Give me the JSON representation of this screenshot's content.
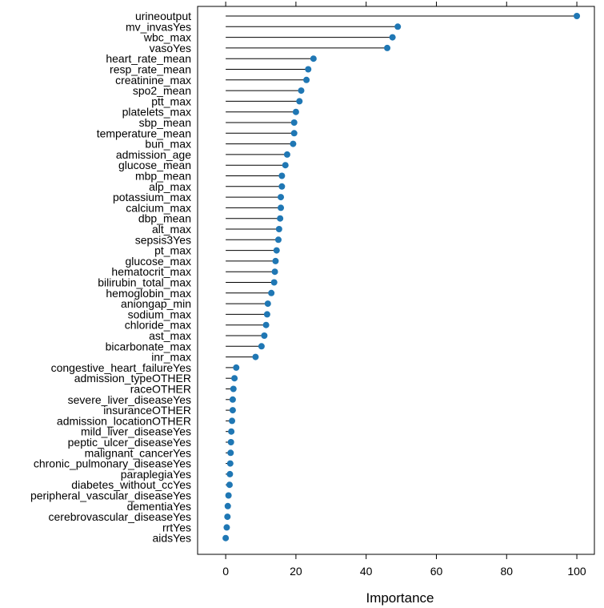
{
  "chart_data": {
    "type": "lollipop",
    "orientation": "horizontal",
    "xlabel": "Importance",
    "ylabel": "",
    "title": "",
    "xlim": [
      -8,
      105
    ],
    "x_ticks": [
      0,
      20,
      40,
      60,
      80,
      100
    ],
    "grid": false,
    "legend": "none",
    "point_color": "#1f77b4",
    "line_color": "#000000",
    "categories": [
      "urineoutput",
      "mv_invasYes",
      "wbc_max",
      "vasoYes",
      "heart_rate_mean",
      "resp_rate_mean",
      "creatinine_max",
      "spo2_mean",
      "ptt_max",
      "platelets_max",
      "sbp_mean",
      "temperature_mean",
      "bun_max",
      "admission_age",
      "glucose_mean",
      "mbp_mean",
      "alp_max",
      "potassium_max",
      "calcium_max",
      "dbp_mean",
      "alt_max",
      "sepsis3Yes",
      "pt_max",
      "glucose_max",
      "hematocrit_max",
      "bilirubin_total_max",
      "hemoglobin_max",
      "aniongap_min",
      "sodium_max",
      "chloride_max",
      "ast_max",
      "bicarbonate_max",
      "inr_max",
      "congestive_heart_failureYes",
      "admission_typeOTHER",
      "raceOTHER",
      "severe_liver_diseaseYes",
      "insuranceOTHER",
      "admission_locationOTHER",
      "mild_liver_diseaseYes",
      "peptic_ulcer_diseaseYes",
      "malignant_cancerYes",
      "chronic_pulmonary_diseaseYes",
      "paraplegiaYes",
      "diabetes_without_ccYes",
      "peripheral_vascular_diseaseYes",
      "dementiaYes",
      "cerebrovascular_diseaseYes",
      "rrtYes",
      "aidsYes"
    ],
    "values": [
      100,
      49,
      47.5,
      46,
      25,
      23.5,
      23,
      21.5,
      21,
      20,
      19.5,
      19.5,
      19.2,
      17.5,
      17,
      16,
      16,
      15.7,
      15.7,
      15.5,
      15.2,
      15,
      14.5,
      14.2,
      14,
      13.8,
      13,
      12,
      11.8,
      11.5,
      11,
      10.2,
      8.5,
      3,
      2.5,
      2.2,
      2,
      2,
      1.8,
      1.6,
      1.5,
      1.4,
      1.3,
      1.2,
      1.1,
      0.8,
      0.6,
      0.5,
      0.3,
      0
    ]
  }
}
